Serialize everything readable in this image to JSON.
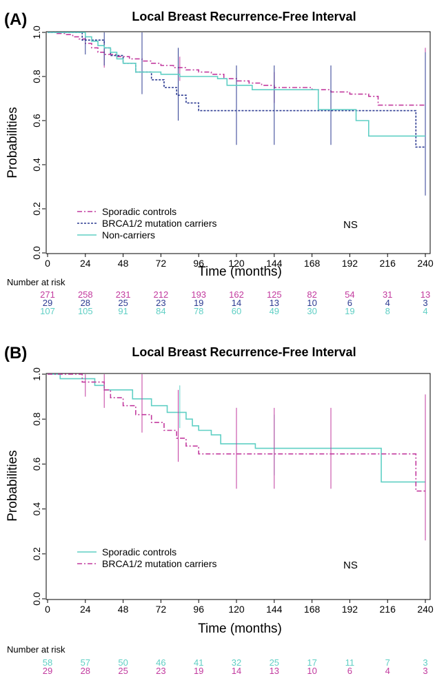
{
  "chart_data": [
    {
      "type": "line",
      "panel_label": "(A)",
      "title": "Local Breast Recurrence-Free Interval",
      "xlabel": "Time (months)",
      "ylabel": "Probabilities",
      "xlim": [
        0,
        240
      ],
      "ylim": [
        0,
        1
      ],
      "xticks": [
        0,
        24,
        48,
        72,
        96,
        120,
        144,
        168,
        192,
        216,
        240
      ],
      "yticks": [
        0.0,
        0.2,
        0.4,
        0.6,
        0.8,
        1.0
      ],
      "grid": false,
      "legend_position": "bottom-left",
      "annotation": "NS",
      "series": [
        {
          "name": "Sporadic controls",
          "color": "#c2399e",
          "dash": "dashdot",
          "points": [
            [
              0,
              1.0
            ],
            [
              6,
              0.995
            ],
            [
              12,
              0.99
            ],
            [
              16,
              0.98
            ],
            [
              20,
              0.97
            ],
            [
              24,
              0.95
            ],
            [
              28,
              0.93
            ],
            [
              32,
              0.91
            ],
            [
              36,
              0.9
            ],
            [
              44,
              0.89
            ],
            [
              52,
              0.88
            ],
            [
              60,
              0.87
            ],
            [
              66,
              0.86
            ],
            [
              72,
              0.85
            ],
            [
              80,
              0.84
            ],
            [
              88,
              0.83
            ],
            [
              96,
              0.82
            ],
            [
              104,
              0.81
            ],
            [
              112,
              0.79
            ],
            [
              120,
              0.78
            ],
            [
              128,
              0.77
            ],
            [
              136,
              0.76
            ],
            [
              144,
              0.75
            ],
            [
              156,
              0.75
            ],
            [
              168,
              0.74
            ],
            [
              180,
              0.73
            ],
            [
              192,
              0.72
            ],
            [
              204,
              0.71
            ],
            [
              210,
              0.67
            ],
            [
              240,
              0.67
            ]
          ],
          "ci_bars": [
            [
              36,
              0.84,
              0.96
            ],
            [
              60,
              0.81,
              0.93
            ],
            [
              84,
              0.78,
              0.89
            ],
            [
              120,
              0.71,
              0.85
            ],
            [
              144,
              0.68,
              0.82
            ],
            [
              180,
              0.64,
              0.8
            ],
            [
              240,
              0.41,
              0.93
            ]
          ]
        },
        {
          "name": "BRCA1/2 mutation carriers",
          "color": "#2b3a91",
          "dash": "dotted",
          "points": [
            [
              0,
              1.0
            ],
            [
              20,
              1.0
            ],
            [
              22,
              0.965
            ],
            [
              36,
              0.93
            ],
            [
              40,
              0.895
            ],
            [
              48,
              0.86
            ],
            [
              56,
              0.82
            ],
            [
              66,
              0.785
            ],
            [
              74,
              0.75
            ],
            [
              82,
              0.715
            ],
            [
              88,
              0.68
            ],
            [
              96,
              0.645
            ],
            [
              120,
              0.645
            ],
            [
              180,
              0.645
            ],
            [
              232,
              0.645
            ],
            [
              234,
              0.48
            ],
            [
              240,
              0.48
            ]
          ],
          "ci_bars": [
            [
              24,
              0.9,
              1.0
            ],
            [
              36,
              0.85,
              1.0
            ],
            [
              60,
              0.72,
              1.0
            ],
            [
              83,
              0.6,
              0.93
            ],
            [
              120,
              0.49,
              0.85
            ],
            [
              144,
              0.49,
              0.85
            ],
            [
              180,
              0.49,
              0.85
            ],
            [
              240,
              0.26,
              0.91
            ]
          ]
        },
        {
          "name": "Non-carriers",
          "color": "#5fcfc4",
          "dash": "solid",
          "points": [
            [
              0,
              1.0
            ],
            [
              20,
              1.0
            ],
            [
              24,
              0.98
            ],
            [
              28,
              0.96
            ],
            [
              32,
              0.94
            ],
            [
              36,
              0.93
            ],
            [
              40,
              0.91
            ],
            [
              44,
              0.88
            ],
            [
              48,
              0.86
            ],
            [
              56,
              0.82
            ],
            [
              66,
              0.82
            ],
            [
              72,
              0.81
            ],
            [
              84,
              0.8
            ],
            [
              96,
              0.8
            ],
            [
              108,
              0.79
            ],
            [
              114,
              0.76
            ],
            [
              124,
              0.76
            ],
            [
              130,
              0.74
            ],
            [
              168,
              0.74
            ],
            [
              172,
              0.65
            ],
            [
              192,
              0.65
            ],
            [
              196,
              0.6
            ],
            [
              204,
              0.53
            ],
            [
              240,
              0.53
            ]
          ]
        }
      ],
      "risk_table": {
        "title": "Number at risk",
        "rows": [
          {
            "color": "#c2399e",
            "values": [
              "271",
              "258",
              "231",
              "212",
              "193",
              "162",
              "125",
              "82",
              "54",
              "31",
              "13"
            ]
          },
          {
            "color": "#2b3a91",
            "values": [
              "29",
              "28",
              "25",
              "23",
              "19",
              "14",
              "13",
              "10",
              "6",
              "4",
              "3"
            ]
          },
          {
            "color": "#5fcfc4",
            "values": [
              "107",
              "105",
              "91",
              "84",
              "78",
              "60",
              "49",
              "30",
              "19",
              "8",
              "4"
            ]
          }
        ]
      }
    },
    {
      "type": "line",
      "panel_label": "(B)",
      "title": "Local Breast Recurrence-Free Interval",
      "xlabel": "Time (months)",
      "ylabel": "Probabilities",
      "xlim": [
        0,
        240
      ],
      "ylim": [
        0,
        1
      ],
      "xticks": [
        0,
        24,
        48,
        72,
        96,
        120,
        144,
        168,
        192,
        216,
        240
      ],
      "yticks": [
        0.0,
        0.2,
        0.4,
        0.6,
        0.8,
        1.0
      ],
      "grid": false,
      "legend_position": "bottom-left",
      "annotation": "NS",
      "series": [
        {
          "name": "Sporadic controls",
          "color": "#5fcfc4",
          "dash": "solid",
          "points": [
            [
              0,
              1.0
            ],
            [
              8,
              0.98
            ],
            [
              16,
              0.98
            ],
            [
              24,
              0.98
            ],
            [
              30,
              0.95
            ],
            [
              36,
              0.93
            ],
            [
              48,
              0.93
            ],
            [
              54,
              0.89
            ],
            [
              62,
              0.89
            ],
            [
              66,
              0.86
            ],
            [
              72,
              0.86
            ],
            [
              76,
              0.83
            ],
            [
              84,
              0.83
            ],
            [
              88,
              0.8
            ],
            [
              92,
              0.77
            ],
            [
              96,
              0.75
            ],
            [
              104,
              0.73
            ],
            [
              110,
              0.69
            ],
            [
              120,
              0.69
            ],
            [
              132,
              0.67
            ],
            [
              210,
              0.67
            ],
            [
              212,
              0.52
            ],
            [
              240,
              0.52
            ]
          ],
          "ci_bars": [
            [
              84,
              0.76,
              0.95
            ],
            [
              120,
              0.58,
              0.85
            ],
            [
              144,
              0.55,
              0.82
            ],
            [
              180,
              0.55,
              0.82
            ],
            [
              240,
              0.34,
              0.87
            ]
          ]
        },
        {
          "name": "BRCA1/2 mutation carriers",
          "color": "#c2399e",
          "dash": "dashdot",
          "points": [
            [
              0,
              1.0
            ],
            [
              20,
              1.0
            ],
            [
              22,
              0.965
            ],
            [
              36,
              0.93
            ],
            [
              40,
              0.895
            ],
            [
              48,
              0.86
            ],
            [
              56,
              0.82
            ],
            [
              66,
              0.785
            ],
            [
              74,
              0.75
            ],
            [
              82,
              0.715
            ],
            [
              88,
              0.68
            ],
            [
              96,
              0.645
            ],
            [
              120,
              0.645
            ],
            [
              180,
              0.645
            ],
            [
              232,
              0.645
            ],
            [
              234,
              0.48
            ],
            [
              240,
              0.48
            ]
          ],
          "ci_bars": [
            [
              24,
              0.9,
              1.0
            ],
            [
              36,
              0.85,
              1.0
            ],
            [
              60,
              0.74,
              1.0
            ],
            [
              83,
              0.61,
              0.93
            ],
            [
              120,
              0.49,
              0.85
            ],
            [
              144,
              0.49,
              0.85
            ],
            [
              180,
              0.49,
              0.85
            ],
            [
              240,
              0.26,
              0.91
            ]
          ]
        }
      ],
      "risk_table": {
        "title": "Number at risk",
        "rows": [
          {
            "color": "#5fcfc4",
            "values": [
              "58",
              "57",
              "50",
              "46",
              "41",
              "32",
              "25",
              "17",
              "11",
              "7",
              "3"
            ]
          },
          {
            "color": "#c2399e",
            "values": [
              "29",
              "28",
              "25",
              "23",
              "19",
              "14",
              "13",
              "10",
              "6",
              "4",
              "3"
            ]
          }
        ]
      }
    }
  ]
}
